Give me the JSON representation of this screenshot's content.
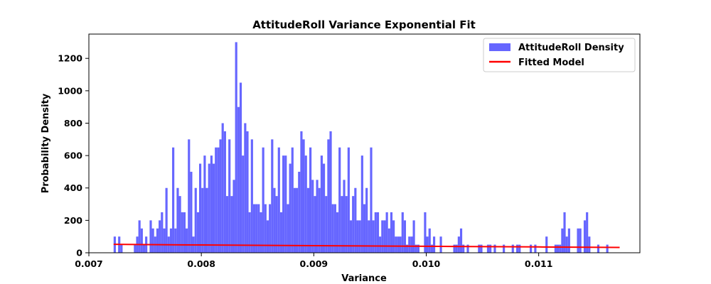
{
  "chart_data": {
    "type": "bar",
    "title": "AttitudeRoll Variance Exponential Fit",
    "xlabel": "Variance",
    "ylabel": "Probability Density",
    "xlim": [
      0.007,
      0.0119
    ],
    "ylim": [
      0,
      1350
    ],
    "xticks": [
      0.007,
      0.008,
      0.009,
      0.01,
      0.011
    ],
    "xtick_labels": [
      "0.007",
      "0.008",
      "0.009",
      "0.010",
      "0.011"
    ],
    "yticks": [
      0,
      200,
      400,
      600,
      800,
      1000,
      1200
    ],
    "ytick_labels": [
      "0",
      "200",
      "400",
      "600",
      "800",
      "1000",
      "1200"
    ],
    "grid": false,
    "legend_position": "top-right",
    "bin_start": 0.00722,
    "bin_width": 2e-05,
    "series": [
      {
        "name": "AttitudeRoll Density",
        "kind": "histogram",
        "color": "#6666ff",
        "values": [
          100,
          0,
          100,
          50,
          0,
          0,
          0,
          0,
          0,
          50,
          100,
          200,
          150,
          50,
          100,
          0,
          200,
          150,
          100,
          150,
          200,
          250,
          150,
          400,
          100,
          150,
          650,
          150,
          400,
          350,
          250,
          250,
          150,
          700,
          500,
          100,
          400,
          250,
          550,
          400,
          600,
          400,
          550,
          600,
          550,
          650,
          650,
          700,
          800,
          750,
          350,
          700,
          350,
          450,
          1300,
          900,
          1050,
          600,
          800,
          750,
          250,
          700,
          300,
          300,
          300,
          250,
          650,
          300,
          200,
          300,
          700,
          400,
          350,
          650,
          250,
          600,
          600,
          300,
          550,
          650,
          400,
          400,
          500,
          750,
          700,
          600,
          400,
          650,
          450,
          350,
          450,
          400,
          600,
          550,
          350,
          700,
          750,
          300,
          300,
          250,
          650,
          350,
          450,
          350,
          650,
          200,
          350,
          400,
          200,
          200,
          600,
          300,
          400,
          200,
          650,
          200,
          250,
          250,
          100,
          200,
          200,
          250,
          150,
          250,
          200,
          100,
          100,
          100,
          250,
          200,
          50,
          100,
          100,
          200,
          50,
          50,
          0,
          0,
          250,
          100,
          150,
          50,
          100,
          0,
          0,
          100,
          0,
          0,
          0,
          0,
          0,
          50,
          50,
          100,
          150,
          50,
          0,
          50,
          0,
          0,
          0,
          0,
          50,
          50,
          0,
          0,
          50,
          50,
          0,
          50,
          0,
          0,
          0,
          50,
          0,
          0,
          0,
          50,
          0,
          50,
          50,
          0,
          0,
          0,
          0,
          50,
          0,
          50,
          0,
          0,
          0,
          0,
          100,
          0,
          0,
          0,
          50,
          50,
          50,
          150,
          250,
          100,
          150,
          0,
          0,
          0,
          150,
          150,
          0,
          200,
          250,
          100,
          0,
          0,
          0,
          50,
          0,
          0,
          0,
          50,
          0,
          0
        ]
      },
      {
        "name": "Fitted Model",
        "kind": "line",
        "color": "#ff0000",
        "x": [
          0.00722,
          0.008,
          0.009,
          0.01,
          0.011,
          0.01172
        ],
        "y": [
          52,
          48,
          44,
          40,
          36,
          33
        ]
      }
    ]
  }
}
